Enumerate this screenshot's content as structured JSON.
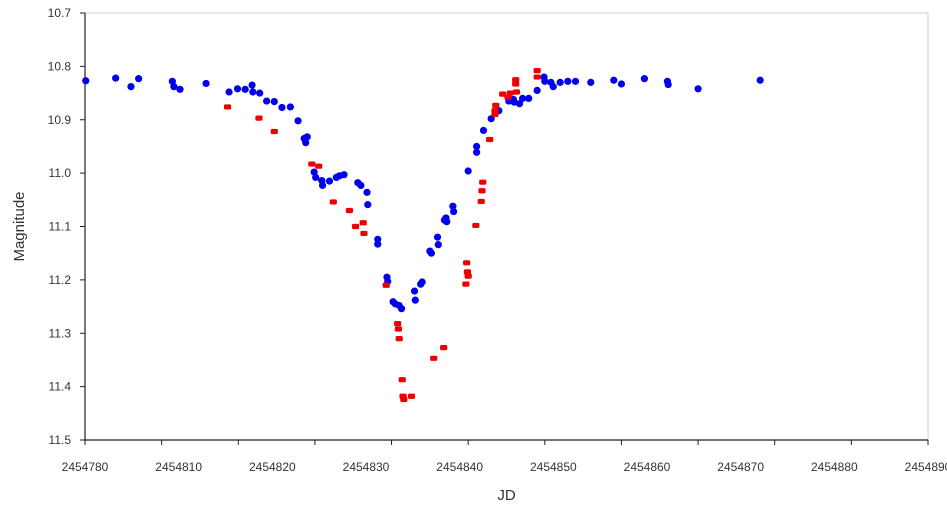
{
  "chart_data": {
    "type": "scatter",
    "title": "",
    "xlabel": "JD",
    "ylabel": "Magnitude",
    "xlim": [
      2454780,
      2454890
    ],
    "ylim": [
      10.7,
      11.5
    ],
    "y_inverted_axis": true,
    "grid": false,
    "x_ticks": [
      2454780,
      2454810,
      2454820,
      2454830,
      2454840,
      2454850,
      2454860,
      2454870,
      2454880,
      2454890
    ],
    "x_tick_labels": [
      "2454780",
      "2454810",
      "2454820",
      "2454830",
      "2454840",
      "2454850",
      "2454860",
      "2454870",
      "2454880",
      "2454890"
    ],
    "y_ticks": [
      10.7,
      10.8,
      10.9,
      11.0,
      11.1,
      11.2,
      11.3,
      11.4,
      11.5
    ],
    "y_tick_labels": [
      "10.7",
      "10.8",
      "10.9",
      "11.0",
      "11.1",
      "11.2",
      "11.3",
      "11.4",
      "11.5"
    ],
    "series": [
      {
        "color": "#0000ee",
        "points": [
          [
            2454780.1,
            10.827
          ],
          [
            2454784.0,
            10.822
          ],
          [
            2454786.0,
            10.838
          ],
          [
            2454787.0,
            10.823
          ],
          [
            2454791.4,
            10.828
          ],
          [
            2454791.6,
            10.838
          ],
          [
            2454792.4,
            10.843
          ],
          [
            2454795.8,
            10.832
          ],
          [
            2454798.8,
            10.848
          ],
          [
            2454799.9,
            10.842
          ],
          [
            2454800.9,
            10.843
          ],
          [
            2454801.8,
            10.835
          ],
          [
            2454801.9,
            10.848
          ],
          [
            2454802.8,
            10.85
          ],
          [
            2454803.7,
            10.865
          ],
          [
            2454804.7,
            10.866
          ],
          [
            2454805.7,
            10.877
          ],
          [
            2454806.8,
            10.876
          ],
          [
            2454807.8,
            10.902
          ],
          [
            2454808.6,
            10.935
          ],
          [
            2454808.8,
            10.943
          ],
          [
            2454809.0,
            10.932
          ],
          [
            2454809.9,
            10.998
          ],
          [
            2454810.1,
            11.008
          ],
          [
            2454810.9,
            11.014
          ],
          [
            2454811.0,
            11.023
          ],
          [
            2454811.9,
            11.015
          ],
          [
            2454812.8,
            11.008
          ],
          [
            2454813.2,
            11.005
          ],
          [
            2454813.8,
            11.003
          ],
          [
            2454815.6,
            11.018
          ],
          [
            2454816.0,
            11.023
          ],
          [
            2454816.8,
            11.036
          ],
          [
            2454816.9,
            11.059
          ],
          [
            2454818.2,
            11.124
          ],
          [
            2454818.2,
            11.133
          ],
          [
            2454819.4,
            11.195
          ],
          [
            2454819.5,
            11.203
          ],
          [
            2454820.2,
            11.241
          ],
          [
            2454820.5,
            11.245
          ],
          [
            2454821.0,
            11.248
          ],
          [
            2454821.3,
            11.254
          ],
          [
            2454823.0,
            11.221
          ],
          [
            2454823.1,
            11.238
          ],
          [
            2454823.8,
            11.208
          ],
          [
            2454824.0,
            11.204
          ],
          [
            2454825.0,
            11.146
          ],
          [
            2454825.2,
            11.15
          ],
          [
            2454826.0,
            11.12
          ],
          [
            2454826.1,
            11.134
          ],
          [
            2454826.9,
            11.088
          ],
          [
            2454827.1,
            11.084
          ],
          [
            2454827.2,
            11.091
          ],
          [
            2454828.0,
            11.062
          ],
          [
            2454828.1,
            11.072
          ],
          [
            2454830.0,
            10.996
          ],
          [
            2454831.1,
            10.95
          ],
          [
            2454831.1,
            10.961
          ],
          [
            2454832.0,
            10.92
          ],
          [
            2454833.0,
            10.898
          ],
          [
            2454834.0,
            10.883
          ],
          [
            2454835.3,
            10.865
          ],
          [
            2454835.9,
            10.862
          ],
          [
            2454836.0,
            10.867
          ],
          [
            2454836.7,
            10.87
          ],
          [
            2454837.1,
            10.86
          ],
          [
            2454837.9,
            10.86
          ],
          [
            2454839.0,
            10.845
          ],
          [
            2454839.9,
            10.82
          ],
          [
            2454840.0,
            10.828
          ],
          [
            2454840.8,
            10.83
          ],
          [
            2454841.1,
            10.838
          ],
          [
            2454842.0,
            10.83
          ],
          [
            2454843.0,
            10.828
          ],
          [
            2454844.0,
            10.828
          ],
          [
            2454846.0,
            10.83
          ],
          [
            2454849.0,
            10.826
          ],
          [
            2454850.0,
            10.833
          ],
          [
            2454853.0,
            10.823
          ],
          [
            2454856.0,
            10.828
          ],
          [
            2454856.1,
            10.834
          ],
          [
            2454860.0,
            10.842
          ],
          [
            2454868.1,
            10.826
          ]
        ]
      },
      {
        "color": "#ee0000",
        "points": [
          [
            2454798.6,
            10.876
          ],
          [
            2454802.7,
            10.897
          ],
          [
            2454804.7,
            10.922
          ],
          [
            2454809.6,
            10.983
          ],
          [
            2454810.5,
            10.987
          ],
          [
            2454812.4,
            11.054
          ],
          [
            2454814.5,
            11.07
          ],
          [
            2454815.3,
            11.1
          ],
          [
            2454816.3,
            11.093
          ],
          [
            2454816.4,
            11.113
          ],
          [
            2454819.3,
            11.21
          ],
          [
            2454820.8,
            11.282
          ],
          [
            2454820.9,
            11.292
          ],
          [
            2454821.0,
            11.31
          ],
          [
            2454821.4,
            11.387
          ],
          [
            2454821.5,
            11.418
          ],
          [
            2454821.6,
            11.424
          ],
          [
            2454822.6,
            11.418
          ],
          [
            2454825.5,
            11.347
          ],
          [
            2454826.8,
            11.327
          ],
          [
            2454829.8,
            11.168
          ],
          [
            2454829.9,
            11.185
          ],
          [
            2454830.0,
            11.193
          ],
          [
            2454829.7,
            11.208
          ],
          [
            2454831.0,
            11.098
          ],
          [
            2454831.8,
            11.033
          ],
          [
            2454831.9,
            11.017
          ],
          [
            2454831.7,
            11.053
          ],
          [
            2454832.8,
            10.937
          ],
          [
            2454833.5,
            10.89
          ],
          [
            2454833.5,
            10.883
          ],
          [
            2454833.6,
            10.873
          ],
          [
            2454834.5,
            10.852
          ],
          [
            2454835.2,
            10.858
          ],
          [
            2454835.5,
            10.85
          ],
          [
            2454836.2,
            10.833
          ],
          [
            2454836.2,
            10.825
          ],
          [
            2454836.3,
            10.848
          ],
          [
            2454839.0,
            10.808
          ],
          [
            2454839.0,
            10.82
          ]
        ]
      }
    ]
  }
}
